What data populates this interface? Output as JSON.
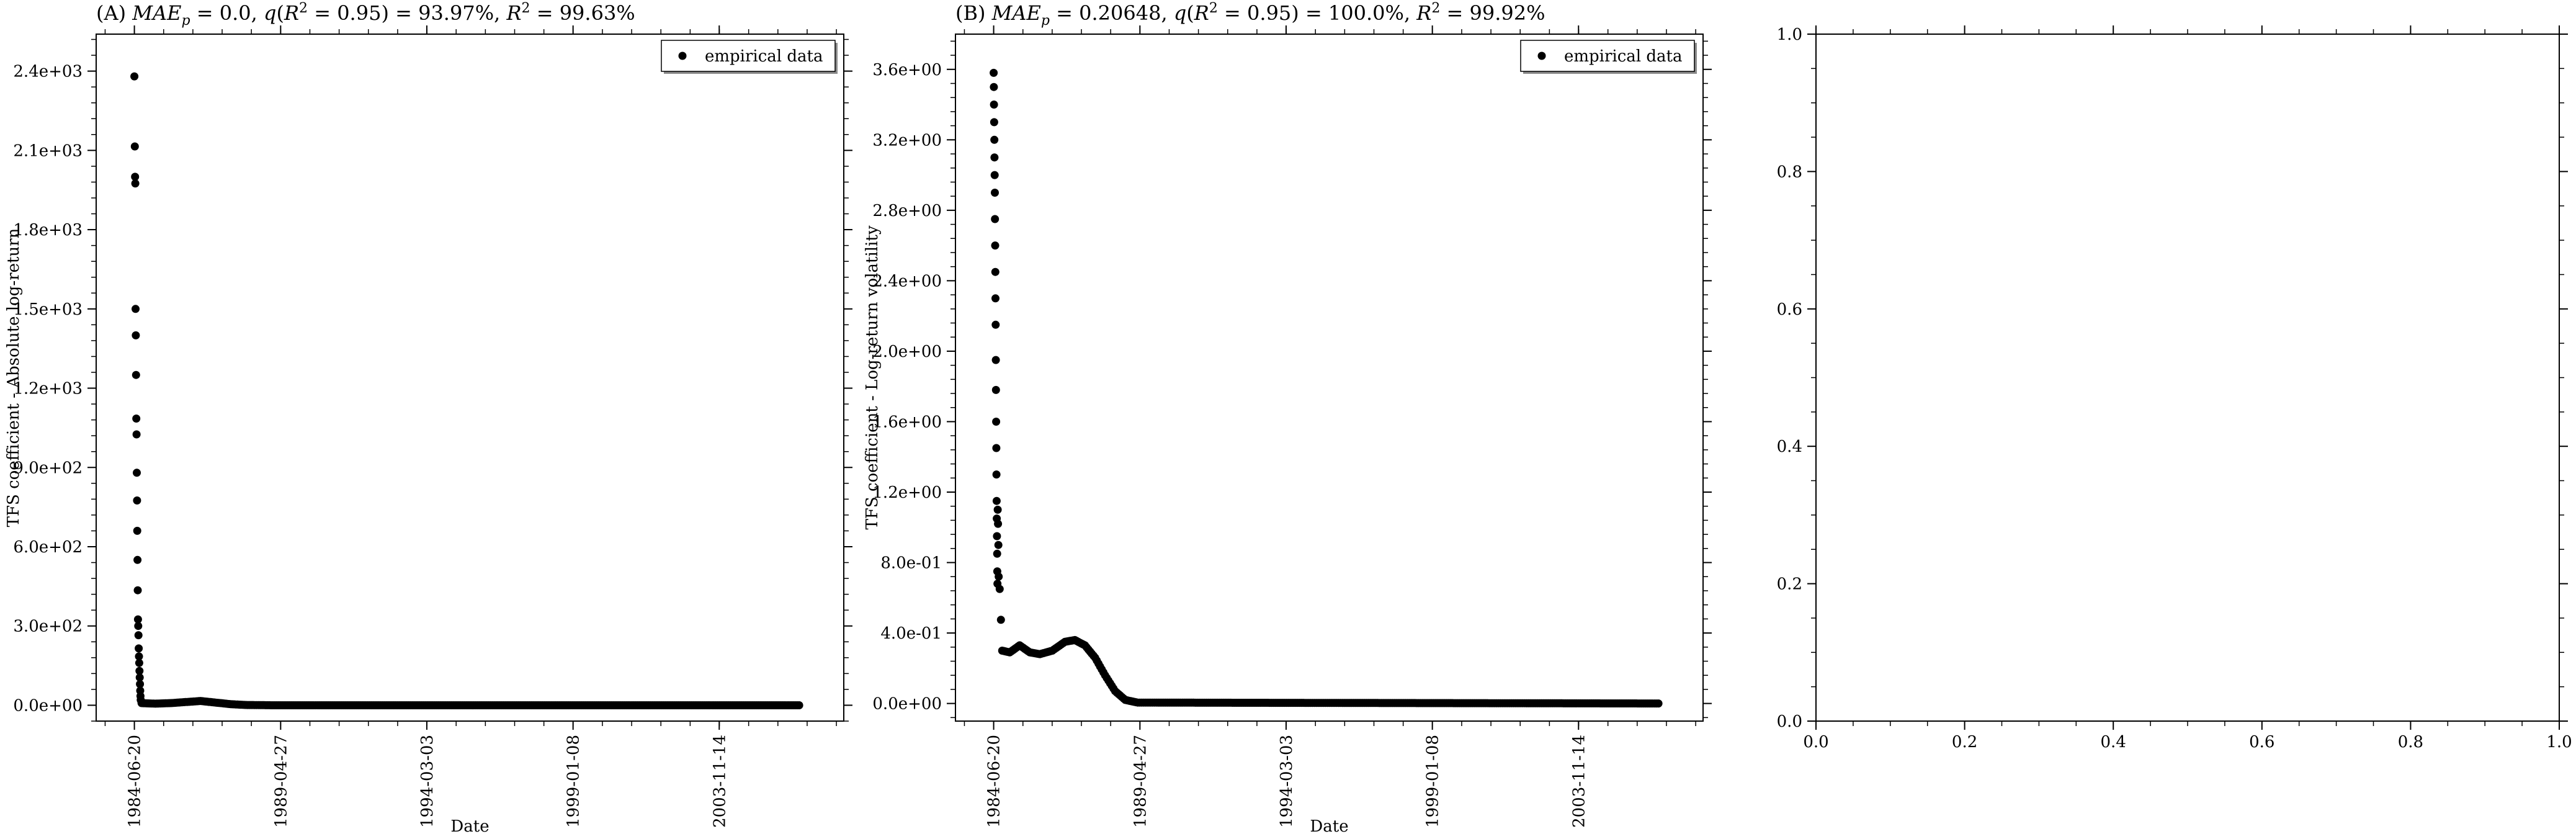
{
  "chart_data": [
    {
      "type": "scatter",
      "title": "(A) MAE_p = 0.0, q(R² = 0.95) = 93.97%, R² = 99.63%",
      "xlabel": "Date",
      "ylabel": "TFS coefficient - Absolute log-return",
      "x_axis_type": "date",
      "xlim": [
        "1983-03-15",
        "2008-01-01"
      ],
      "ylim": [
        -60,
        2540
      ],
      "x_ticks": [
        "1984-06-20",
        "1989-04-27",
        "1994-03-03",
        "1999-01-08",
        "2003-11-14"
      ],
      "y_ticks": [
        0,
        300,
        600,
        900,
        1200,
        1500,
        1800,
        2100,
        2400
      ],
      "y_tick_labels": [
        "0.0e+00",
        "3.0e+02",
        "6.0e+02",
        "9.0e+02",
        "1.2e+03",
        "1.5e+03",
        "1.8e+03",
        "2.1e+03",
        "2.4e+03"
      ],
      "legend": {
        "entries": [
          "empirical data"
        ],
        "position": "upper right"
      },
      "grid": false,
      "series": [
        {
          "name": "empirical data",
          "color": "#000000",
          "points": [
            {
              "x": "1984-06-20",
              "y": 2380
            },
            {
              "x": "1984-06-25",
              "y": 2115
            },
            {
              "x": "1984-06-28",
              "y": 2000
            },
            {
              "x": "1984-07-01",
              "y": 1975
            },
            {
              "x": "1984-07-04",
              "y": 1500
            },
            {
              "x": "1984-07-07",
              "y": 1400
            },
            {
              "x": "1984-07-10",
              "y": 1250
            },
            {
              "x": "1984-07-13",
              "y": 1085
            },
            {
              "x": "1984-07-16",
              "y": 1025
            },
            {
              "x": "1984-07-19",
              "y": 880
            },
            {
              "x": "1984-07-22",
              "y": 775
            },
            {
              "x": "1984-07-25",
              "y": 660
            },
            {
              "x": "1984-07-28",
              "y": 550
            },
            {
              "x": "1984-07-31",
              "y": 435
            },
            {
              "x": "1984-08-03",
              "y": 325
            },
            {
              "x": "1984-08-06",
              "y": 300
            },
            {
              "x": "1984-08-09",
              "y": 265
            },
            {
              "x": "1984-08-12",
              "y": 215
            },
            {
              "x": "1984-08-15",
              "y": 185
            },
            {
              "x": "1984-08-18",
              "y": 160
            },
            {
              "x": "1984-08-21",
              "y": 130
            },
            {
              "x": "1984-08-24",
              "y": 105
            },
            {
              "x": "1984-08-27",
              "y": 80
            },
            {
              "x": "1984-08-30",
              "y": 55
            },
            {
              "x": "1984-09-02",
              "y": 35
            },
            {
              "x": "1984-09-05",
              "y": 20
            },
            {
              "x": "1984-09-15",
              "y": 10
            }
          ],
          "continuous_band": [
            {
              "x": "1984-09-15",
              "y": 8
            },
            {
              "x": "1985-03-01",
              "y": 6
            },
            {
              "x": "1985-09-01",
              "y": 8
            },
            {
              "x": "1986-03-01",
              "y": 12
            },
            {
              "x": "1986-09-01",
              "y": 16
            },
            {
              "x": "1987-03-01",
              "y": 10
            },
            {
              "x": "1987-09-01",
              "y": 4
            },
            {
              "x": "1988-03-01",
              "y": 1
            },
            {
              "x": "1989-01-01",
              "y": 0
            },
            {
              "x": "2006-08-01",
              "y": 0
            }
          ]
        }
      ]
    },
    {
      "type": "scatter",
      "title": "(B) MAE_p = 0.20648, q(R² = 0.95) = 100.0%, R² = 99.92%",
      "xlabel": "Date",
      "ylabel": "TFS coefficient - Log-return volatility",
      "x_axis_type": "date",
      "xlim": [
        "1983-03-15",
        "2008-01-01"
      ],
      "ylim": [
        -0.1,
        3.8
      ],
      "x_ticks": [
        "1984-06-20",
        "1989-04-27",
        "1994-03-03",
        "1999-01-08",
        "2003-11-14"
      ],
      "y_ticks": [
        0,
        0.4,
        0.8,
        1.2,
        1.6,
        2.0,
        2.4,
        2.8,
        3.2,
        3.6
      ],
      "y_tick_labels": [
        "0.0e+00",
        "4.0e-01",
        "8.0e-01",
        "1.2e+00",
        "1.6e+00",
        "2.0e+00",
        "2.4e+00",
        "2.8e+00",
        "3.2e+00",
        "3.6e+00"
      ],
      "legend": {
        "entries": [
          "empirical data"
        ],
        "position": "upper right"
      },
      "grid": false,
      "series": [
        {
          "name": "empirical data",
          "color": "#000000",
          "points": [
            {
              "x": "1984-06-20",
              "y": 3.58
            },
            {
              "x": "1984-06-22",
              "y": 3.5
            },
            {
              "x": "1984-06-24",
              "y": 3.4
            },
            {
              "x": "1984-06-26",
              "y": 3.3
            },
            {
              "x": "1984-06-28",
              "y": 3.2
            },
            {
              "x": "1984-06-30",
              "y": 3.1
            },
            {
              "x": "1984-07-02",
              "y": 3.0
            },
            {
              "x": "1984-07-04",
              "y": 2.9
            },
            {
              "x": "1984-07-06",
              "y": 2.75
            },
            {
              "x": "1984-07-08",
              "y": 2.6
            },
            {
              "x": "1984-07-10",
              "y": 2.45
            },
            {
              "x": "1984-07-12",
              "y": 2.3
            },
            {
              "x": "1984-07-14",
              "y": 2.15
            },
            {
              "x": "1984-07-16",
              "y": 1.95
            },
            {
              "x": "1984-07-18",
              "y": 1.78
            },
            {
              "x": "1984-07-20",
              "y": 1.6
            },
            {
              "x": "1984-07-22",
              "y": 1.45
            },
            {
              "x": "1984-07-24",
              "y": 1.3
            },
            {
              "x": "1984-07-26",
              "y": 1.15
            },
            {
              "x": "1984-07-28",
              "y": 1.05
            },
            {
              "x": "1984-07-30",
              "y": 0.95
            },
            {
              "x": "1984-08-01",
              "y": 0.85
            },
            {
              "x": "1984-08-03",
              "y": 0.75
            },
            {
              "x": "1984-08-05",
              "y": 0.68
            },
            {
              "x": "1984-08-08",
              "y": 1.1
            },
            {
              "x": "1984-08-12",
              "y": 1.02
            },
            {
              "x": "1984-08-16",
              "y": 0.9
            },
            {
              "x": "1984-08-20",
              "y": 0.72
            }
          ],
          "continuous_band": [
            {
              "x": "1984-09-01",
              "y": 0.65
            },
            {
              "x": "1984-10-01",
              "y": 0.3
            },
            {
              "x": "1985-01-01",
              "y": 0.29
            },
            {
              "x": "1985-05-01",
              "y": 0.33
            },
            {
              "x": "1985-09-01",
              "y": 0.29
            },
            {
              "x": "1986-01-01",
              "y": 0.28
            },
            {
              "x": "1986-06-01",
              "y": 0.3
            },
            {
              "x": "1986-11-01",
              "y": 0.35
            },
            {
              "x": "1987-03-01",
              "y": 0.36
            },
            {
              "x": "1987-07-01",
              "y": 0.33
            },
            {
              "x": "1987-11-01",
              "y": 0.26
            },
            {
              "x": "1988-03-01",
              "y": 0.16
            },
            {
              "x": "1988-07-01",
              "y": 0.07
            },
            {
              "x": "1988-11-01",
              "y": 0.02
            },
            {
              "x": "1989-04-01",
              "y": 0.005
            },
            {
              "x": "2006-08-01",
              "y": 0.0
            }
          ]
        }
      ]
    },
    {
      "type": "scatter",
      "title": "",
      "xlabel": "",
      "ylabel": "",
      "xlim": [
        0,
        1
      ],
      "ylim": [
        0,
        1
      ],
      "x_ticks": [
        0,
        0.2,
        0.4,
        0.6,
        0.8,
        1.0
      ],
      "x_tick_labels": [
        "0.0",
        "0.2",
        "0.4",
        "0.6",
        "0.8",
        "1.0"
      ],
      "y_ticks": [
        0,
        0.2,
        0.4,
        0.6,
        0.8,
        1.0
      ],
      "y_tick_labels": [
        "0.0",
        "0.2",
        "0.4",
        "0.6",
        "0.8",
        "1.0"
      ],
      "grid": false,
      "series": []
    }
  ]
}
